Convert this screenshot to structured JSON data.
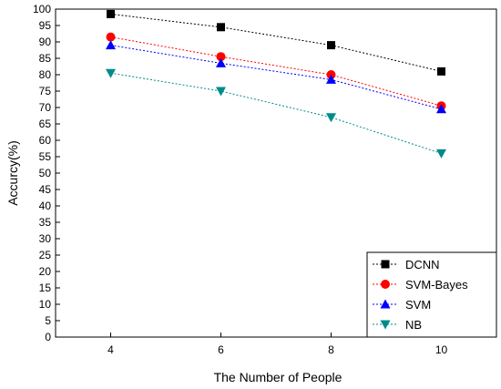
{
  "chart_data": {
    "type": "line",
    "title": "",
    "xlabel": "The Number of People",
    "ylabel": "Accurcy(%)",
    "x": [
      4,
      6,
      8,
      10
    ],
    "x_ticks": [
      "4",
      "6",
      "8",
      "10"
    ],
    "xlim": [
      3,
      11
    ],
    "ylim": [
      0,
      100
    ],
    "y_tick_step": 5,
    "grid": false,
    "legend_position": "bottom-right",
    "series": [
      {
        "name": "DCNN",
        "values": [
          98.5,
          94.5,
          89.0,
          81.0
        ],
        "color": "#000000",
        "marker": "square",
        "line_style": "dotted"
      },
      {
        "name": "SVM-Bayes",
        "values": [
          91.5,
          85.5,
          80.0,
          70.5
        ],
        "color": "#ff0000",
        "marker": "circle",
        "line_style": "dotted"
      },
      {
        "name": "SVM",
        "values": [
          89.0,
          83.5,
          78.5,
          69.5
        ],
        "color": "#0000ff",
        "marker": "triangle-up",
        "line_style": "dotted"
      },
      {
        "name": "NB",
        "values": [
          80.5,
          75.0,
          67.0,
          56.0
        ],
        "color": "#008b8b",
        "marker": "triangle-down",
        "line_style": "dotted"
      }
    ]
  }
}
